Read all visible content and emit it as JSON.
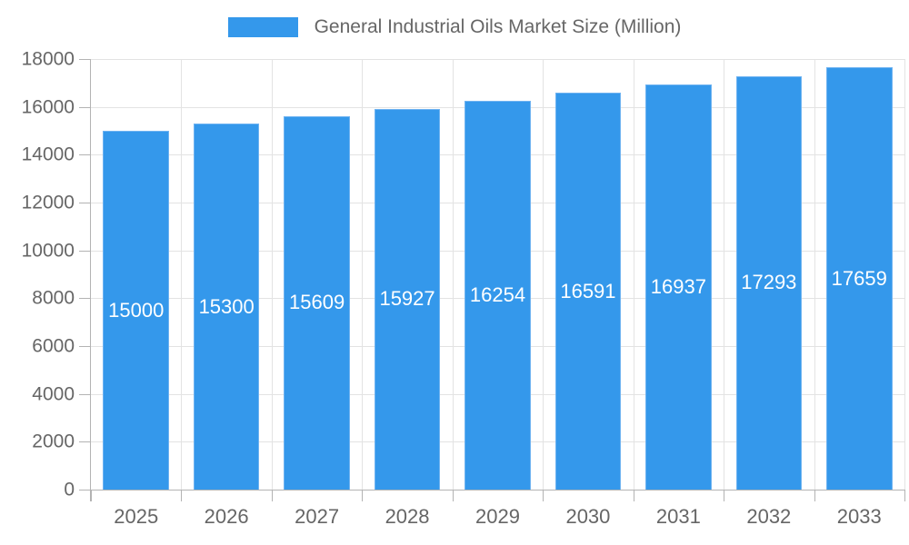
{
  "legend": {
    "label": "General Industrial Oils Market Size (Million)"
  },
  "colors": {
    "bar_fill": "#3498eb",
    "bar_edge": "#6fb3f1",
    "grid": "#e3e3e3",
    "axis": "#b3b3b3",
    "tick_text": "#666666",
    "value_text": "#ffffff"
  },
  "chart_data": {
    "type": "bar",
    "title": "General Industrial Oils Market Size (Million)",
    "categories": [
      "2025",
      "2026",
      "2027",
      "2028",
      "2029",
      "2030",
      "2031",
      "2032",
      "2033"
    ],
    "values": [
      15000,
      15300,
      15609,
      15927,
      16254,
      16591,
      16937,
      17293,
      17659
    ],
    "value_labels": [
      "15000",
      "15300",
      "15609",
      "15927",
      "16254",
      "16591",
      "16937",
      "17293",
      "17659"
    ],
    "xlabel": "",
    "ylabel": "",
    "ylim": [
      0,
      18000
    ],
    "ytick_step": 2000,
    "ytick_labels": [
      "0",
      "2000",
      "4000",
      "6000",
      "8000",
      "10000",
      "12000",
      "14000",
      "16000",
      "18000"
    ],
    "grid": true,
    "legend_position": "top-center",
    "bar_label_position": "center"
  }
}
